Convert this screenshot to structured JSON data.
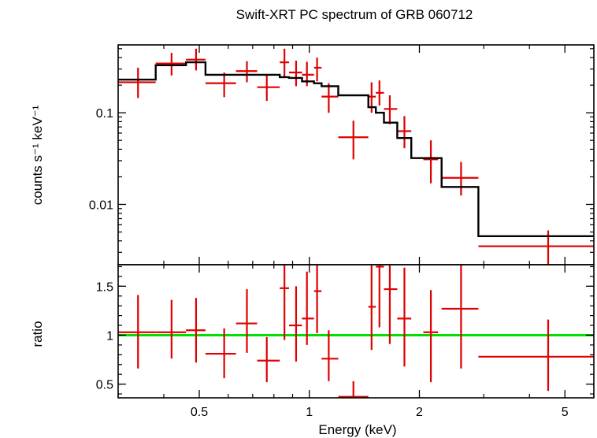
{
  "chart_data": [
    {
      "type": "scatter",
      "panel": "spectrum",
      "title": "Swift-XRT PC spectrum of GRB 060712",
      "ylabel": "counts s⁻¹ keV⁻¹",
      "xlabel": "Energy (keV)",
      "xscale": "log",
      "yscale": "log",
      "xlim": [
        0.3,
        6.0
      ],
      "ylim": [
        0.0022,
        0.55
      ],
      "y_ticks": [
        {
          "value": 0.1,
          "label": "0.1"
        },
        {
          "value": 0.01,
          "label": "0.01"
        }
      ],
      "data_series": {
        "name": "data",
        "color": "#e00000",
        "points": [
          {
            "x": 0.34,
            "xlo": 0.3,
            "xhi": 0.38,
            "y": 0.215,
            "ylo": 0.145,
            "yhi": 0.31
          },
          {
            "x": 0.42,
            "xlo": 0.38,
            "xhi": 0.46,
            "y": 0.345,
            "ylo": 0.255,
            "yhi": 0.45
          },
          {
            "x": 0.49,
            "xlo": 0.46,
            "xhi": 0.52,
            "y": 0.38,
            "ylo": 0.29,
            "yhi": 0.5
          },
          {
            "x": 0.585,
            "xlo": 0.52,
            "xhi": 0.63,
            "y": 0.21,
            "ylo": 0.148,
            "yhi": 0.275
          },
          {
            "x": 0.675,
            "xlo": 0.63,
            "xhi": 0.72,
            "y": 0.285,
            "ylo": 0.215,
            "yhi": 0.365
          },
          {
            "x": 0.765,
            "xlo": 0.72,
            "xhi": 0.83,
            "y": 0.19,
            "ylo": 0.135,
            "yhi": 0.255
          },
          {
            "x": 0.855,
            "xlo": 0.83,
            "xhi": 0.88,
            "y": 0.355,
            "ylo": 0.245,
            "yhi": 0.5
          },
          {
            "x": 0.92,
            "xlo": 0.88,
            "xhi": 0.955,
            "y": 0.275,
            "ylo": 0.195,
            "yhi": 0.37
          },
          {
            "x": 0.985,
            "xlo": 0.955,
            "xhi": 1.03,
            "y": 0.26,
            "ylo": 0.195,
            "yhi": 0.36
          },
          {
            "x": 1.05,
            "xlo": 1.03,
            "xhi": 1.08,
            "y": 0.31,
            "ylo": 0.22,
            "yhi": 0.4
          },
          {
            "x": 1.13,
            "xlo": 1.08,
            "xhi": 1.2,
            "y": 0.15,
            "ylo": 0.1,
            "yhi": 0.21
          },
          {
            "x": 1.32,
            "xlo": 1.2,
            "xhi": 1.45,
            "y": 0.054,
            "ylo": 0.031,
            "yhi": 0.082
          },
          {
            "x": 1.48,
            "xlo": 1.45,
            "xhi": 1.52,
            "y": 0.15,
            "ylo": 0.1,
            "yhi": 0.215
          },
          {
            "x": 1.555,
            "xlo": 1.52,
            "xhi": 1.6,
            "y": 0.165,
            "ylo": 0.12,
            "yhi": 0.225
          },
          {
            "x": 1.66,
            "xlo": 1.6,
            "xhi": 1.74,
            "y": 0.11,
            "ylo": 0.075,
            "yhi": 0.155
          },
          {
            "x": 1.82,
            "xlo": 1.74,
            "xhi": 1.9,
            "y": 0.063,
            "ylo": 0.041,
            "yhi": 0.092
          },
          {
            "x": 2.15,
            "xlo": 2.05,
            "xhi": 2.25,
            "y": 0.031,
            "ylo": 0.017,
            "yhi": 0.05
          },
          {
            "x": 2.6,
            "xlo": 2.3,
            "xhi": 2.9,
            "y": 0.0195,
            "ylo": 0.0125,
            "yhi": 0.029
          },
          {
            "x": 4.5,
            "xlo": 2.9,
            "xhi": 6.0,
            "y": 0.0035,
            "ylo": 0.0022,
            "yhi": 0.0052
          }
        ]
      },
      "model_series": {
        "name": "model",
        "color": "#000000",
        "steps": [
          {
            "x0": 0.3,
            "x1": 0.38,
            "y": 0.23
          },
          {
            "x0": 0.38,
            "x1": 0.46,
            "y": 0.33
          },
          {
            "x0": 0.46,
            "x1": 0.52,
            "y": 0.355
          },
          {
            "x0": 0.52,
            "x1": 0.83,
            "y": 0.26
          },
          {
            "x0": 0.83,
            "x1": 0.88,
            "y": 0.245
          },
          {
            "x0": 0.88,
            "x1": 0.955,
            "y": 0.24
          },
          {
            "x0": 0.955,
            "x1": 1.03,
            "y": 0.22
          },
          {
            "x0": 1.03,
            "x1": 1.08,
            "y": 0.21
          },
          {
            "x0": 1.08,
            "x1": 1.2,
            "y": 0.195
          },
          {
            "x0": 1.2,
            "x1": 1.45,
            "y": 0.155
          },
          {
            "x0": 1.45,
            "x1": 1.52,
            "y": 0.115
          },
          {
            "x0": 1.52,
            "x1": 1.6,
            "y": 0.1
          },
          {
            "x0": 1.6,
            "x1": 1.74,
            "y": 0.078
          },
          {
            "x0": 1.74,
            "x1": 1.9,
            "y": 0.053
          },
          {
            "x0": 1.9,
            "x1": 2.3,
            "y": 0.032
          },
          {
            "x0": 2.3,
            "x1": 2.9,
            "y": 0.0155
          },
          {
            "x0": 2.9,
            "x1": 6.0,
            "y": 0.0045
          }
        ]
      }
    },
    {
      "type": "scatter",
      "panel": "ratio",
      "ylabel": "ratio",
      "xlabel": "Energy (keV)",
      "xscale": "log",
      "yscale": "linear",
      "xlim": [
        0.3,
        6.0
      ],
      "ylim": [
        0.36,
        1.72
      ],
      "x_ticks": [
        {
          "value": 0.5,
          "label": "0.5"
        },
        {
          "value": 1,
          "label": "1"
        },
        {
          "value": 2,
          "label": "2"
        },
        {
          "value": 5,
          "label": "5"
        }
      ],
      "y_ticks": [
        {
          "value": 0.5,
          "label": "0.5"
        },
        {
          "value": 1,
          "label": "1"
        },
        {
          "value": 1.5,
          "label": "1.5"
        }
      ],
      "reference_line": {
        "y": 1.0,
        "color": "#00e000"
      },
      "data_series": {
        "name": "ratio",
        "color": "#e00000",
        "points": [
          {
            "x": 0.34,
            "xlo": 0.3,
            "xhi": 0.38,
            "y": 1.03,
            "ylo": 0.66,
            "yhi": 1.41
          },
          {
            "x": 0.42,
            "xlo": 0.38,
            "xhi": 0.46,
            "y": 1.03,
            "ylo": 0.76,
            "yhi": 1.36
          },
          {
            "x": 0.49,
            "xlo": 0.46,
            "xhi": 0.52,
            "y": 1.05,
            "ylo": 0.72,
            "yhi": 1.38
          },
          {
            "x": 0.585,
            "xlo": 0.52,
            "xhi": 0.63,
            "y": 0.81,
            "ylo": 0.56,
            "yhi": 1.07
          },
          {
            "x": 0.675,
            "xlo": 0.63,
            "xhi": 0.72,
            "y": 1.12,
            "ylo": 0.82,
            "yhi": 1.47
          },
          {
            "x": 0.765,
            "xlo": 0.72,
            "xhi": 0.83,
            "y": 0.74,
            "ylo": 0.52,
            "yhi": 0.98
          },
          {
            "x": 0.855,
            "xlo": 0.83,
            "xhi": 0.88,
            "y": 1.48,
            "ylo": 0.95,
            "yhi": 1.85
          },
          {
            "x": 0.92,
            "xlo": 0.88,
            "xhi": 0.955,
            "y": 1.1,
            "ylo": 0.73,
            "yhi": 1.5
          },
          {
            "x": 0.985,
            "xlo": 0.955,
            "xhi": 1.03,
            "y": 1.17,
            "ylo": 0.9,
            "yhi": 1.65
          },
          {
            "x": 1.05,
            "xlo": 1.03,
            "xhi": 1.08,
            "y": 1.45,
            "ylo": 1.02,
            "yhi": 1.85
          },
          {
            "x": 1.13,
            "xlo": 1.08,
            "xhi": 1.2,
            "y": 0.76,
            "ylo": 0.53,
            "yhi": 1.05
          },
          {
            "x": 1.32,
            "xlo": 1.2,
            "xhi": 1.45,
            "y": 0.37,
            "ylo": 0.3,
            "yhi": 0.53
          },
          {
            "x": 1.48,
            "xlo": 1.45,
            "xhi": 1.52,
            "y": 1.29,
            "ylo": 0.85,
            "yhi": 1.85
          },
          {
            "x": 1.555,
            "xlo": 1.52,
            "xhi": 1.6,
            "y": 1.7,
            "ylo": 1.08,
            "yhi": 1.73
          },
          {
            "x": 1.66,
            "xlo": 1.6,
            "xhi": 1.74,
            "y": 1.47,
            "ylo": 0.91,
            "yhi": 1.85
          },
          {
            "x": 1.82,
            "xlo": 1.74,
            "xhi": 1.9,
            "y": 1.17,
            "ylo": 0.68,
            "yhi": 1.69
          },
          {
            "x": 2.15,
            "xlo": 2.05,
            "xhi": 2.25,
            "y": 1.03,
            "ylo": 0.52,
            "yhi": 1.46
          },
          {
            "x": 2.6,
            "xlo": 2.3,
            "xhi": 2.9,
            "y": 1.27,
            "ylo": 0.66,
            "yhi": 1.85
          },
          {
            "x": 4.5,
            "xlo": 2.9,
            "xhi": 6.0,
            "y": 0.78,
            "ylo": 0.43,
            "yhi": 1.16
          }
        ]
      }
    }
  ]
}
